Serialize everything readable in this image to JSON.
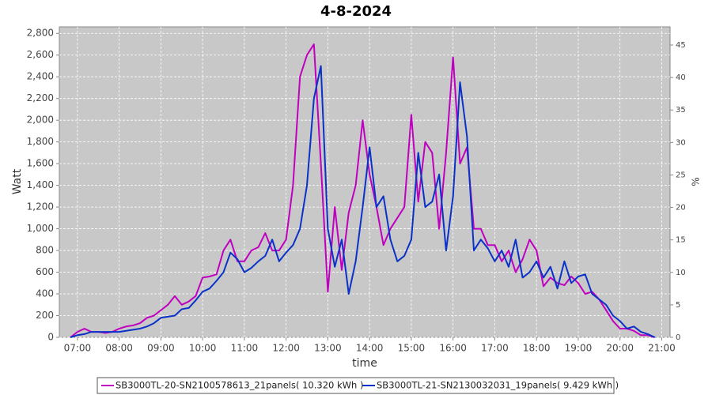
{
  "chart_data": {
    "type": "line",
    "title": "4-8-2024",
    "xlabel": "time",
    "ylabel": "Watt",
    "y2label": "%",
    "x": [
      "06:50",
      "07:00",
      "07:10",
      "07:20",
      "07:30",
      "07:40",
      "07:50",
      "08:00",
      "08:10",
      "08:20",
      "08:30",
      "08:40",
      "08:50",
      "09:00",
      "09:10",
      "09:20",
      "09:30",
      "09:40",
      "09:50",
      "10:00",
      "10:10",
      "10:20",
      "10:30",
      "10:40",
      "10:50",
      "11:00",
      "11:10",
      "11:20",
      "11:30",
      "11:40",
      "11:50",
      "12:00",
      "12:10",
      "12:20",
      "12:30",
      "12:40",
      "12:50",
      "13:00",
      "13:10",
      "13:20",
      "13:30",
      "13:40",
      "13:50",
      "14:00",
      "14:10",
      "14:20",
      "14:30",
      "14:40",
      "14:50",
      "15:00",
      "15:10",
      "15:20",
      "15:30",
      "15:40",
      "15:50",
      "16:00",
      "16:10",
      "16:20",
      "16:30",
      "16:40",
      "16:50",
      "17:00",
      "17:10",
      "17:20",
      "17:30",
      "17:40",
      "17:50",
      "18:00",
      "18:10",
      "18:20",
      "18:30",
      "18:40",
      "18:50",
      "19:00",
      "19:10",
      "19:20",
      "19:30",
      "19:40",
      "19:50",
      "20:00",
      "20:10",
      "20:20",
      "20:30",
      "20:40",
      "20:50"
    ],
    "series": [
      {
        "name": "SB3000TL-20-SN2100578613_21panels( 10.320 kWh )",
        "color": "#c000c0",
        "values": [
          0,
          50,
          80,
          50,
          50,
          40,
          50,
          80,
          100,
          110,
          130,
          180,
          200,
          250,
          300,
          380,
          300,
          330,
          380,
          550,
          560,
          580,
          800,
          900,
          700,
          700,
          800,
          830,
          960,
          800,
          800,
          900,
          1400,
          2400,
          2600,
          2700,
          1600,
          420,
          1200,
          620,
          1150,
          1400,
          2000,
          1500,
          1200,
          850,
          1000,
          1100,
          1200,
          2050,
          1250,
          1800,
          1700,
          1000,
          1700,
          2580,
          1600,
          1750,
          1000,
          1000,
          850,
          850,
          700,
          800,
          600,
          720,
          900,
          800,
          470,
          550,
          500,
          480,
          560,
          500,
          400,
          420,
          350,
          250,
          150,
          80,
          80,
          60,
          20,
          20,
          0
        ]
      },
      {
        "name": "SB3000TL-21-SN2130032031_19panels( 9.429 kWh )",
        "color": "#0a32c8",
        "values": [
          0,
          20,
          30,
          50,
          50,
          50,
          50,
          50,
          60,
          70,
          80,
          100,
          130,
          180,
          190,
          200,
          260,
          270,
          340,
          420,
          450,
          520,
          600,
          780,
          720,
          600,
          640,
          700,
          750,
          900,
          700,
          780,
          850,
          1000,
          1400,
          2200,
          2500,
          1000,
          650,
          900,
          400,
          700,
          1200,
          1750,
          1200,
          1300,
          900,
          700,
          750,
          900,
          1700,
          1200,
          1250,
          1500,
          800,
          1300,
          2350,
          1850,
          800,
          900,
          820,
          700,
          800,
          650,
          900,
          550,
          600,
          700,
          550,
          650,
          450,
          700,
          500,
          560,
          580,
          400,
          350,
          300,
          200,
          150,
          80,
          100,
          50,
          30,
          0
        ]
      }
    ],
    "xlim": [
      "06:34",
      "21:12"
    ],
    "xticks": [
      "07:00",
      "08:00",
      "09:00",
      "10:00",
      "11:00",
      "12:00",
      "13:00",
      "14:00",
      "15:00",
      "16:00",
      "17:00",
      "18:00",
      "19:00",
      "20:00",
      "21:00"
    ],
    "ylim": [
      0,
      2860
    ],
    "yticks": [
      0,
      200,
      400,
      600,
      800,
      {
        "value": 1000,
        "label": "1,000"
      },
      {
        "value": 1200,
        "label": "1,200"
      },
      {
        "value": 1400,
        "label": "1,400"
      },
      {
        "value": 1600,
        "label": "1,600"
      },
      {
        "value": 1800,
        "label": "1,800"
      },
      {
        "value": 2000,
        "label": "2,000"
      },
      {
        "value": 2200,
        "label": "2,200"
      },
      {
        "value": 2400,
        "label": "2,400"
      },
      {
        "value": 2600,
        "label": "2,600"
      },
      {
        "value": 2800,
        "label": "2,800"
      }
    ],
    "y2lim": [
      0,
      47.8
    ],
    "y2ticks": [
      0,
      5,
      10,
      15,
      20,
      25,
      30,
      35,
      40,
      45
    ],
    "grid": true
  }
}
